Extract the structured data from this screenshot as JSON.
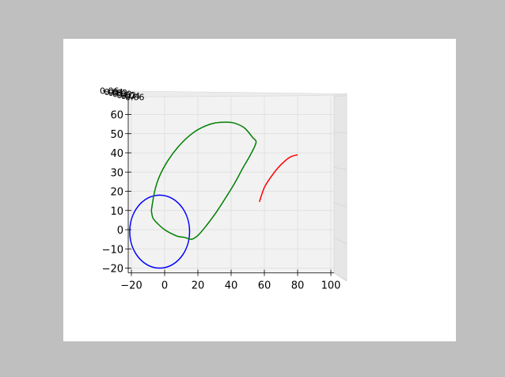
{
  "chart_data": {
    "type": "line3d",
    "title": "",
    "xlabel": "",
    "ylabel": "",
    "zlabel": "",
    "xlim": [
      -20,
      100
    ],
    "ylim": [
      -20,
      60
    ],
    "x_ticks": [
      -20,
      0,
      20,
      40,
      60,
      80,
      100
    ],
    "y_ticks": [
      -20,
      -10,
      0,
      10,
      20,
      30,
      40,
      50,
      60
    ],
    "depth_tick_labels": [
      "0.06",
      "0.04",
      "0.02",
      "0.00",
      "0.02",
      "0.04",
      "0.06"
    ],
    "grid": true,
    "legend": "none",
    "series": [
      {
        "color": "#0000ff",
        "shape": "circle",
        "center": [
          -3,
          -1
        ],
        "radius_x": 18,
        "radius_y": 19
      },
      {
        "color": "#008000",
        "points": [
          [
            -8,
            10
          ],
          [
            -6,
            20
          ],
          [
            -3,
            28
          ],
          [
            2,
            36
          ],
          [
            8,
            43
          ],
          [
            15,
            49
          ],
          [
            22,
            53
          ],
          [
            30,
            55.5
          ],
          [
            37,
            56
          ],
          [
            42,
            55.5
          ],
          [
            48,
            53
          ],
          [
            53,
            48
          ],
          [
            55,
            46
          ],
          [
            54,
            43
          ],
          [
            51,
            38
          ],
          [
            47,
            32
          ],
          [
            42,
            24
          ],
          [
            37,
            17
          ],
          [
            31,
            9
          ],
          [
            25,
            2
          ],
          [
            20,
            -3
          ],
          [
            16,
            -5
          ],
          [
            12,
            -4
          ],
          [
            8,
            -3.5
          ],
          [
            4,
            -2
          ],
          [
            0,
            0
          ],
          [
            -4,
            3
          ],
          [
            -7,
            6
          ],
          [
            -8,
            10
          ]
        ]
      },
      {
        "color": "#ff0000",
        "points": [
          [
            57,
            14.5
          ],
          [
            60,
            22
          ],
          [
            64,
            27.5
          ],
          [
            68,
            32
          ],
          [
            72,
            35.5
          ],
          [
            76,
            38
          ],
          [
            80,
            39
          ]
        ]
      }
    ]
  }
}
